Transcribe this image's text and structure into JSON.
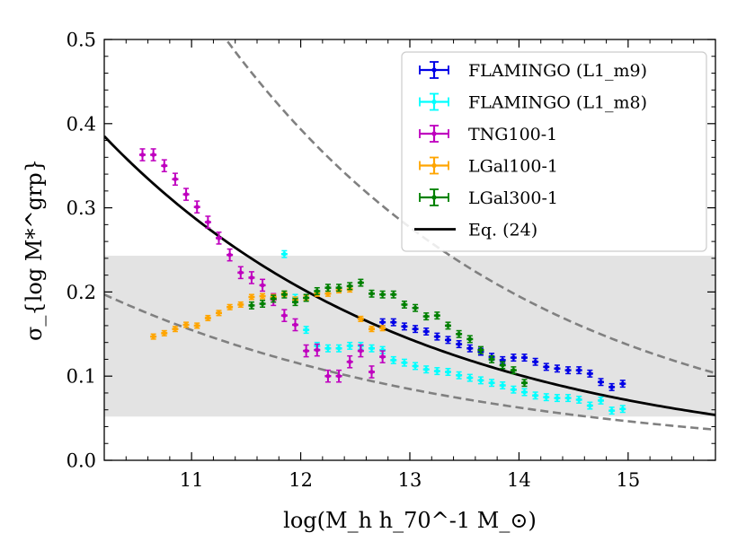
{
  "chart_data": {
    "type": "scatter",
    "title": "",
    "xlabel": "log(M_h h_70^-1 M_⊙)",
    "ylabel": "σ_{log M*^grp}",
    "xlim": [
      10.2,
      15.8
    ],
    "ylim": [
      0.0,
      0.5
    ],
    "x_ticks": [
      11,
      12,
      13,
      14,
      15
    ],
    "y_ticks": [
      0.0,
      0.1,
      0.2,
      0.3,
      0.4,
      0.5
    ],
    "x_tick_labels": [
      "11",
      "12",
      "13",
      "14",
      "15"
    ],
    "y_tick_labels": [
      "0.0",
      "0.1",
      "0.2",
      "0.3",
      "0.4",
      "0.5"
    ],
    "legend_position": "top-right",
    "shaded_band": {
      "y_range": [
        0.052,
        0.243
      ],
      "color": "#e3e3e3"
    },
    "series": [
      {
        "name": "FLAMINGO (L1_m9)",
        "color": "#0000e6",
        "x": [
          12.75,
          12.85,
          12.95,
          13.05,
          13.15,
          13.25,
          13.35,
          13.45,
          13.55,
          13.65,
          13.75,
          13.85,
          13.95,
          14.05,
          14.15,
          14.25,
          14.35,
          14.45,
          14.55,
          14.65,
          14.75,
          14.85,
          14.95
        ],
        "y": [
          0.164,
          0.164,
          0.159,
          0.156,
          0.153,
          0.147,
          0.143,
          0.138,
          0.133,
          0.129,
          0.123,
          0.119,
          0.122,
          0.122,
          0.117,
          0.111,
          0.109,
          0.107,
          0.107,
          0.103,
          0.093,
          0.087,
          0.091
        ],
        "err": 0.004
      },
      {
        "name": "FLAMINGO (L1_m8)",
        "color": "#00ffff",
        "x": [
          11.85,
          11.95,
          12.05,
          12.15,
          12.25,
          12.35,
          12.45,
          12.55,
          12.65,
          12.75,
          12.85,
          12.95,
          13.05,
          13.15,
          13.25,
          13.35,
          13.45,
          13.55,
          13.65,
          13.75,
          13.85,
          13.95,
          14.05,
          14.15,
          14.25,
          14.35,
          14.45,
          14.55,
          14.65,
          14.75,
          14.85,
          14.95
        ],
        "y": [
          0.245,
          0.193,
          0.155,
          0.136,
          0.133,
          0.133,
          0.136,
          0.136,
          0.133,
          0.131,
          0.119,
          0.116,
          0.112,
          0.108,
          0.106,
          0.105,
          0.101,
          0.098,
          0.095,
          0.092,
          0.089,
          0.084,
          0.081,
          0.077,
          0.075,
          0.074,
          0.074,
          0.072,
          0.065,
          0.071,
          0.059,
          0.061
        ],
        "err": 0.004
      },
      {
        "name": "TNG100-1",
        "color": "#bf00bf",
        "x": [
          10.55,
          10.65,
          10.75,
          10.85,
          10.95,
          11.05,
          11.15,
          11.25,
          11.35,
          11.45,
          11.55,
          11.65,
          11.75,
          11.85,
          11.95,
          12.05,
          12.15,
          12.25,
          12.35,
          12.45,
          12.55,
          12.65,
          12.75
        ],
        "y": [
          0.363,
          0.363,
          0.35,
          0.334,
          0.316,
          0.301,
          0.283,
          0.264,
          0.244,
          0.223,
          0.217,
          0.208,
          0.191,
          0.172,
          0.161,
          0.13,
          0.131,
          0.1,
          0.1,
          0.117,
          0.13,
          0.105,
          0.123
        ],
        "err": 0.007
      },
      {
        "name": "LGal100-1",
        "color": "#ffa500",
        "x": [
          10.65,
          10.75,
          10.85,
          10.95,
          11.05,
          11.15,
          11.25,
          11.35,
          11.45,
          11.55,
          11.65,
          11.75,
          11.85,
          11.95,
          12.05,
          12.15,
          12.25,
          12.35,
          12.45,
          12.55,
          12.65,
          12.75
        ],
        "y": [
          0.147,
          0.151,
          0.156,
          0.161,
          0.16,
          0.169,
          0.175,
          0.182,
          0.185,
          0.194,
          0.195,
          0.194,
          0.198,
          0.191,
          0.193,
          0.198,
          0.198,
          0.202,
          0.203,
          0.168,
          0.156,
          0.157
        ],
        "err": 0.003
      },
      {
        "name": "LGal300-1",
        "color": "#008000",
        "x": [
          11.55,
          11.65,
          11.75,
          11.85,
          11.95,
          12.05,
          12.15,
          12.25,
          12.35,
          12.45,
          12.55,
          12.65,
          12.75,
          12.85,
          12.95,
          13.05,
          13.15,
          13.25,
          13.35,
          13.45,
          13.55,
          13.65,
          13.75,
          13.85,
          13.95,
          14.05
        ],
        "y": [
          0.184,
          0.186,
          0.192,
          0.197,
          0.188,
          0.193,
          0.201,
          0.205,
          0.205,
          0.207,
          0.211,
          0.198,
          0.197,
          0.197,
          0.185,
          0.181,
          0.171,
          0.172,
          0.16,
          0.15,
          0.144,
          0.131,
          0.12,
          0.113,
          0.107,
          0.092
        ],
        "err": 0.004
      }
    ],
    "curves": [
      {
        "name": "Eq. (24)",
        "color": "#000000",
        "style": "solid",
        "fn": "0.385 * 10^(-0.1525*(x-10.2))"
      },
      {
        "name": "upper envelope",
        "color": "#808080",
        "style": "dashed",
        "fn": "0.74 * 10^(-0.1525*(x-10.2))"
      },
      {
        "name": "lower envelope",
        "color": "#808080",
        "style": "dashed",
        "fn": "0.197 * 10^(-0.1309*(x-10.2))"
      }
    ],
    "legend": [
      {
        "label": "FLAMINGO (L1_m9)",
        "kind": "errorbar",
        "color": "#0000e6"
      },
      {
        "label": "FLAMINGO (L1_m8)",
        "kind": "errorbar",
        "color": "#00ffff"
      },
      {
        "label": "TNG100-1",
        "kind": "errorbar",
        "color": "#bf00bf"
      },
      {
        "label": "LGal100-1",
        "kind": "errorbar",
        "color": "#ffa500"
      },
      {
        "label": "LGal300-1",
        "kind": "errorbar",
        "color": "#008000"
      },
      {
        "label": "Eq. (24)",
        "kind": "line",
        "color": "#000000"
      }
    ]
  }
}
